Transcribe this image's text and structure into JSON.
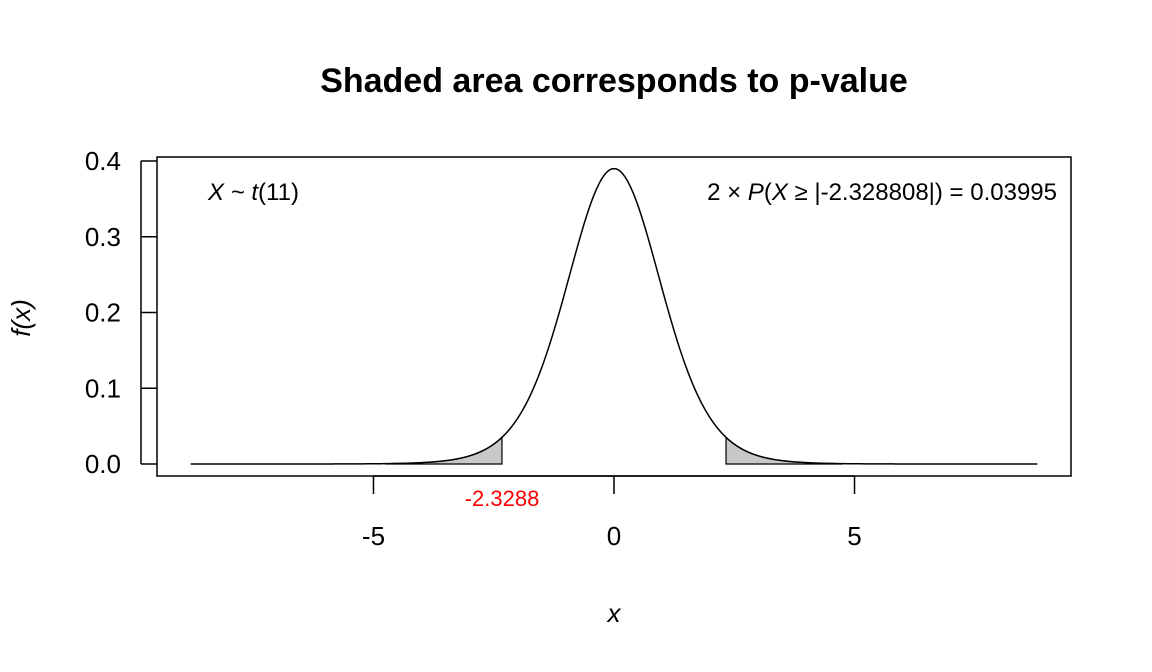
{
  "chart_data": {
    "type": "area",
    "title": "Shaded area corresponds to p-value",
    "xlabel": "x",
    "ylabel": "f(x)",
    "distribution": "t",
    "df": 11,
    "statistic": -2.328808,
    "p_value": 0.03995,
    "x_range": [
      -8.8,
      8.8
    ],
    "xlim": [
      -9.5,
      9.5
    ],
    "ylim": [
      0,
      0.4
    ],
    "x_ticks": [
      -5,
      0,
      5
    ],
    "x_tick_labels": [
      "-5",
      "0",
      "5"
    ],
    "y_ticks": [
      0.0,
      0.1,
      0.2,
      0.3,
      0.4
    ],
    "y_tick_labels": [
      "0.0",
      "0.1",
      "0.2",
      "0.3",
      "0.4"
    ],
    "critical_label": "-2.3288",
    "critical_label_color": "#ff0000",
    "shade_color": "#c8c8c8",
    "annotations": {
      "distribution_prefix": "X ~ ",
      "distribution_name": "t",
      "distribution_args": "(11)",
      "pvalue_prefix": "2 × ",
      "pvalue_P": "P",
      "pvalue_open": "(",
      "pvalue_X": "X",
      "pvalue_rest": " ≥ |-2.328808|) = 0.03995"
    }
  }
}
